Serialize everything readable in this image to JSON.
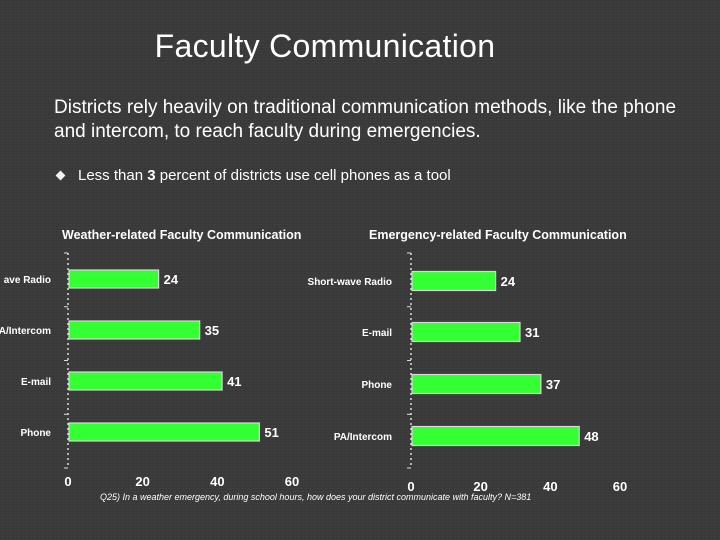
{
  "slide": {
    "title": "Faculty Communication",
    "lead": "Districts rely heavily on traditional communication methods, like the phone and intercom, to reach faculty during emergencies.",
    "bullet": {
      "prefix": "Less than ",
      "emphasis": "3",
      "suffix": " percent of districts use cell phones as a tool"
    },
    "footnote": "Q25) In a weather emergency, during school hours, how does your district communicate with faculty? N=381"
  },
  "colors": {
    "bar": "#33ff33",
    "bar_edge": "#d8d8d8",
    "axis": "#dddddd",
    "text": "#ffffff"
  },
  "chart_data": [
    {
      "type": "bar",
      "orientation": "horizontal",
      "title": "Weather-related Faculty Communication",
      "categories": [
        "Short-wave Radio",
        "PA/Intercom",
        "E-mail",
        "Phone"
      ],
      "category_labels_visible": [
        "ave Radio",
        "A/Intercom",
        "E-mail",
        "Phone"
      ],
      "values": [
        24,
        35,
        41,
        51
      ],
      "xlim": [
        0,
        60
      ],
      "xticks": [
        0,
        20,
        40,
        60
      ],
      "grid": false,
      "data_labels": true
    },
    {
      "type": "bar",
      "orientation": "horizontal",
      "title": "Emergency-related Faculty Communication",
      "categories": [
        "Short-wave Radio",
        "E-mail",
        "Phone",
        "PA/Intercom"
      ],
      "category_labels_visible": [
        "Short-wave Radio",
        "E-mail",
        "Phone",
        "PA/Intercom"
      ],
      "values": [
        24,
        31,
        37,
        48
      ],
      "xlim": [
        0,
        60
      ],
      "xticks": [
        0,
        20,
        40,
        60
      ],
      "grid": false,
      "data_labels": true
    }
  ]
}
